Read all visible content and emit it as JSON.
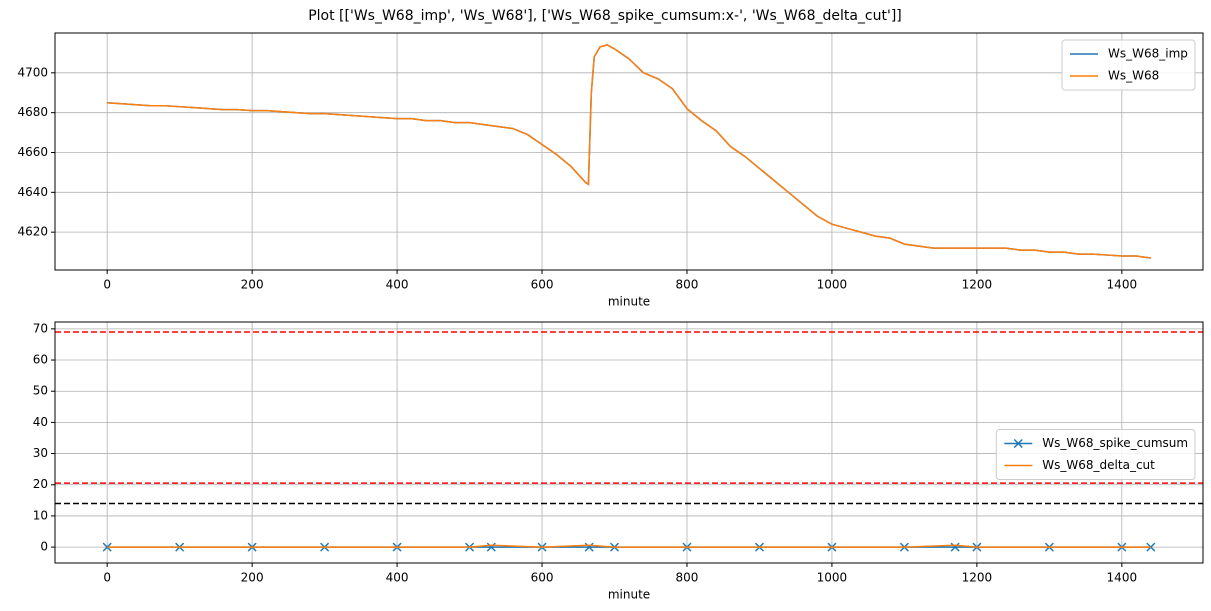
{
  "chart_data": [
    {
      "type": "line",
      "title": "Plot [['Ws_W68_imp', 'Ws_W68'], ['Ws_W68_spike_cumsum:x-', 'Ws_W68_delta_cut']]",
      "x_label": "minute",
      "x": [
        0,
        20,
        40,
        60,
        80,
        100,
        120,
        140,
        160,
        180,
        200,
        220,
        240,
        260,
        280,
        300,
        320,
        340,
        360,
        380,
        400,
        420,
        440,
        460,
        480,
        500,
        520,
        540,
        560,
        580,
        600,
        620,
        640,
        660,
        664,
        668,
        672,
        680,
        690,
        700,
        720,
        740,
        760,
        780,
        800,
        820,
        840,
        860,
        880,
        900,
        920,
        940,
        960,
        980,
        1000,
        1020,
        1040,
        1060,
        1080,
        1100,
        1120,
        1140,
        1160,
        1180,
        1200,
        1220,
        1240,
        1260,
        1280,
        1300,
        1320,
        1340,
        1360,
        1380,
        1400,
        1420,
        1440
      ],
      "series": [
        {
          "name": "Ws_W68_imp",
          "color": "#1f77b4",
          "values": [
            4685,
            4684.5,
            4684,
            4683.5,
            4683.5,
            4683,
            4682.5,
            4682,
            4681.5,
            4681.5,
            4681,
            4681,
            4680.5,
            4680,
            4679.5,
            4679.5,
            4679,
            4678.5,
            4678,
            4677.5,
            4677,
            4677,
            4676,
            4676,
            4675,
            4675,
            4674,
            4673,
            4672,
            4669,
            4664,
            4659,
            4653,
            4645,
            4644,
            4690,
            4708,
            4713,
            4714,
            4712,
            4707,
            4700,
            4697,
            4692,
            4682,
            4676,
            4671,
            4663,
            4658,
            4652,
            4646,
            4640,
            4634,
            4628,
            4624,
            4622,
            4620,
            4618,
            4617,
            4614,
            4613,
            4612,
            4612,
            4612,
            4612,
            4612,
            4612,
            4611,
            4611,
            4610,
            4610,
            4609,
            4609,
            4608.5,
            4608,
            4608,
            4607
          ]
        },
        {
          "name": "Ws_W68",
          "color": "#ff7f0e",
          "values": [
            4685,
            4684.5,
            4684,
            4683.5,
            4683.5,
            4683,
            4682.5,
            4682,
            4681.5,
            4681.5,
            4681,
            4681,
            4680.5,
            4680,
            4679.5,
            4679.5,
            4679,
            4678.5,
            4678,
            4677.5,
            4677,
            4677,
            4676,
            4676,
            4675,
            4675,
            4674,
            4673,
            4672,
            4669,
            4664,
            4659,
            4653,
            4645,
            4644,
            4690,
            4708,
            4713,
            4714,
            4712,
            4707,
            4700,
            4697,
            4692,
            4682,
            4676,
            4671,
            4663,
            4658,
            4652,
            4646,
            4640,
            4634,
            4628,
            4624,
            4622,
            4620,
            4618,
            4617,
            4614,
            4613,
            4612,
            4612,
            4612,
            4612,
            4612,
            4612,
            4611,
            4611,
            4610,
            4610,
            4609,
            4609,
            4608.5,
            4608,
            4608,
            4607
          ]
        }
      ],
      "xlim": [
        -72,
        1512
      ],
      "xticks": [
        0,
        200,
        400,
        600,
        800,
        1000,
        1200,
        1400
      ],
      "ylim": [
        4601,
        4720
      ],
      "yticks": [
        4620,
        4640,
        4660,
        4680,
        4700
      ],
      "grid": true,
      "legend": "upper right"
    },
    {
      "type": "line",
      "x_label": "minute",
      "x": [
        0,
        100,
        200,
        300,
        400,
        500,
        530,
        600,
        665,
        700,
        800,
        900,
        1000,
        1100,
        1170,
        1200,
        1300,
        1400,
        1440
      ],
      "series": [
        {
          "name": "Ws_W68_spike_cumsum",
          "color": "#1f77b4",
          "marker": "x",
          "values": [
            0,
            0,
            0,
            0,
            0,
            0,
            0,
            0,
            0,
            0,
            0,
            0,
            0,
            0,
            0,
            0,
            0,
            0,
            0
          ]
        },
        {
          "name": "Ws_W68_delta_cut",
          "color": "#ff7f0e",
          "values": [
            0,
            0,
            0,
            0,
            0,
            0,
            0.6,
            0,
            0.6,
            0,
            0,
            0,
            0,
            0,
            0.6,
            0,
            0,
            0,
            0
          ]
        }
      ],
      "hlines": [
        {
          "value": 69,
          "color": "red"
        },
        {
          "value": 20.5,
          "color": "red"
        },
        {
          "value": 14,
          "color": "black"
        }
      ],
      "xlim": [
        -72,
        1512
      ],
      "xticks": [
        0,
        200,
        400,
        600,
        800,
        1000,
        1200,
        1400
      ],
      "ylim": [
        -5.1,
        72.2
      ],
      "yticks": [
        0,
        10,
        20,
        30,
        40,
        50,
        60,
        70
      ],
      "grid": true,
      "legend": "center right"
    }
  ]
}
